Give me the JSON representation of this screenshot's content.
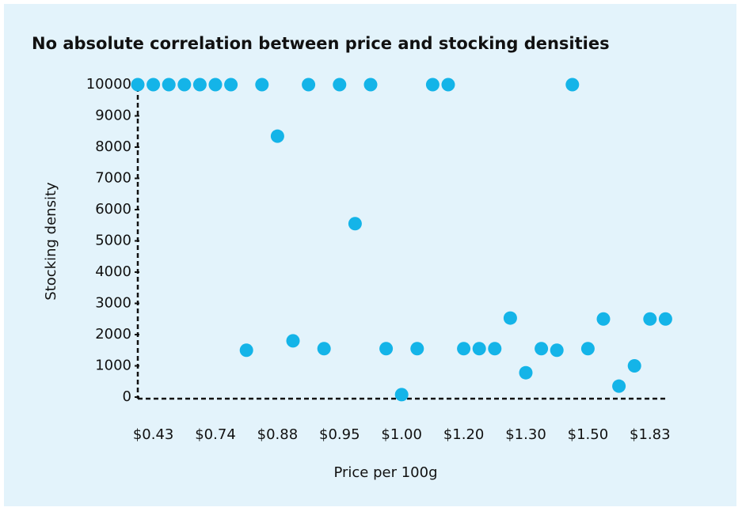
{
  "chart_data": {
    "type": "scatter",
    "title": "No absolute correlation between price and stocking densities",
    "x_label": "Price per 100g",
    "y_label": "Stocking density",
    "categories": [
      null,
      "$0.43",
      null,
      null,
      null,
      "$0.74",
      null,
      null,
      null,
      "$0.88",
      null,
      null,
      null,
      "$0.95",
      null,
      null,
      null,
      "$1.00",
      null,
      null,
      null,
      "$1.20",
      null,
      null,
      null,
      "$1.30",
      null,
      null,
      null,
      "$1.50",
      null,
      null,
      null,
      "$1.83",
      null
    ],
    "values": [
      10000,
      10000,
      10000,
      10000,
      10000,
      10000,
      10000,
      1500,
      10000,
      8350,
      1800,
      10000,
      1550,
      10000,
      5550,
      10000,
      1550,
      80,
      1550,
      10000,
      10000,
      1550,
      1550,
      1550,
      2530,
      780,
      1550,
      1500,
      10000,
      1550,
      2500,
      350,
      1000,
      2500,
      2500
    ],
    "color": "#14b4e8",
    "ylim": [
      0,
      10000
    ],
    "yticks": [
      0,
      1000,
      2000,
      3000,
      4000,
      5000,
      6000,
      7000,
      8000,
      9000,
      10000
    ]
  }
}
